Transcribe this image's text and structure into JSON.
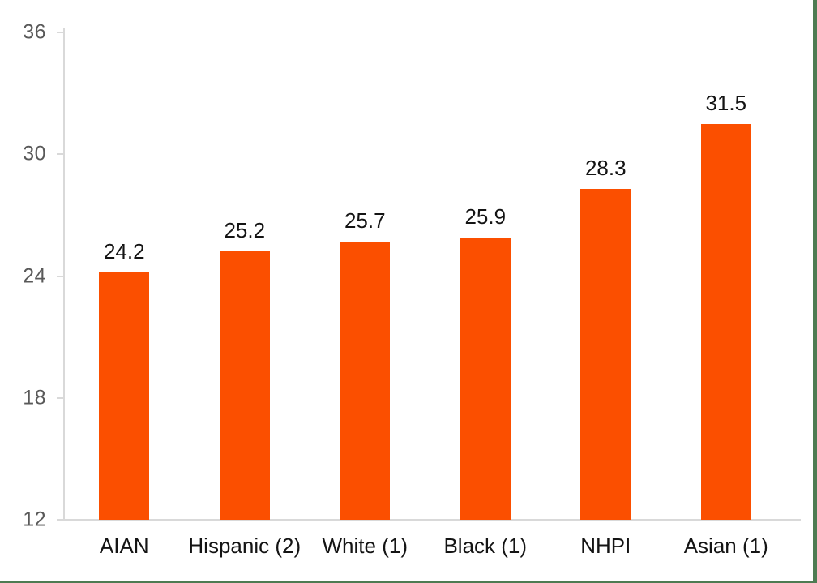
{
  "chart_data": {
    "type": "bar",
    "categories": [
      "AIAN",
      "Hispanic (2)",
      "White (1)",
      "Black (1)",
      "NHPI",
      "Asian (1)"
    ],
    "values": [
      24.2,
      25.2,
      25.7,
      25.9,
      28.3,
      31.5
    ],
    "data_labels": [
      "24.2",
      "25.2",
      "25.7",
      "25.9",
      "28.3",
      "31.5"
    ],
    "title": "",
    "xlabel": "",
    "ylabel": "",
    "ylim": [
      12,
      36
    ],
    "yticks": [
      36,
      30,
      24,
      18,
      12
    ],
    "grid": false,
    "legend": "none",
    "colors": {
      "bar": "#FB4F00",
      "axis_line": "#D9D9D9",
      "y_tick_label": "#595959",
      "data_label": "#141414",
      "category_label": "#141414",
      "window_edge": "#4E7B52",
      "background": "#FFFFFF"
    }
  }
}
